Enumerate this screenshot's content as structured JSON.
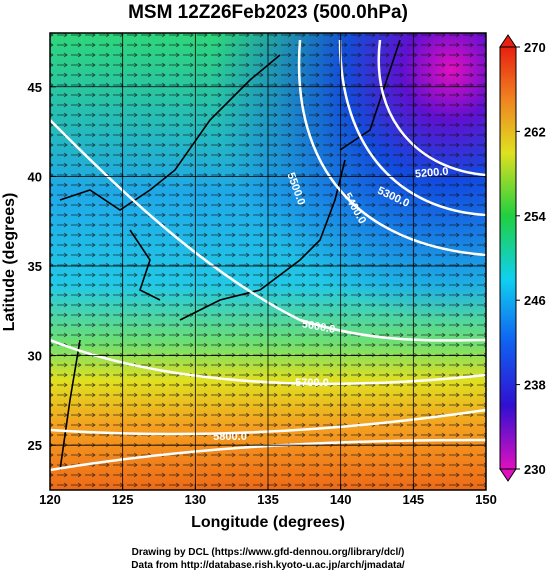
{
  "chart_data": {
    "type": "map",
    "title": "MSM 12Z26Feb2023 (500.0hPa)",
    "x_label": "Longitude (degrees)",
    "y_label": "Latitude  (degrees)",
    "xlim": [
      120,
      150
    ],
    "ylim": [
      22.5,
      48
    ],
    "xticks": [
      120,
      125,
      130,
      135,
      140,
      145,
      150
    ],
    "yticks": [
      25,
      30,
      35,
      40,
      45
    ],
    "grid": true,
    "colorbar": {
      "lim": [
        230,
        270
      ],
      "ticks": [
        230,
        238,
        246,
        254,
        262,
        270
      ]
    },
    "contour_labels": [
      "5200.0",
      "5300.0",
      "5400.0",
      "5500.0",
      "5600.0",
      "5700.0",
      "5800.0"
    ],
    "credits": [
      "Drawing by DCL (https://www.gfd-dennou.org/library/dcl/)",
      "Data from http://database.rish.kyoto-u.ac.jp/arch/jmadata/"
    ]
  }
}
